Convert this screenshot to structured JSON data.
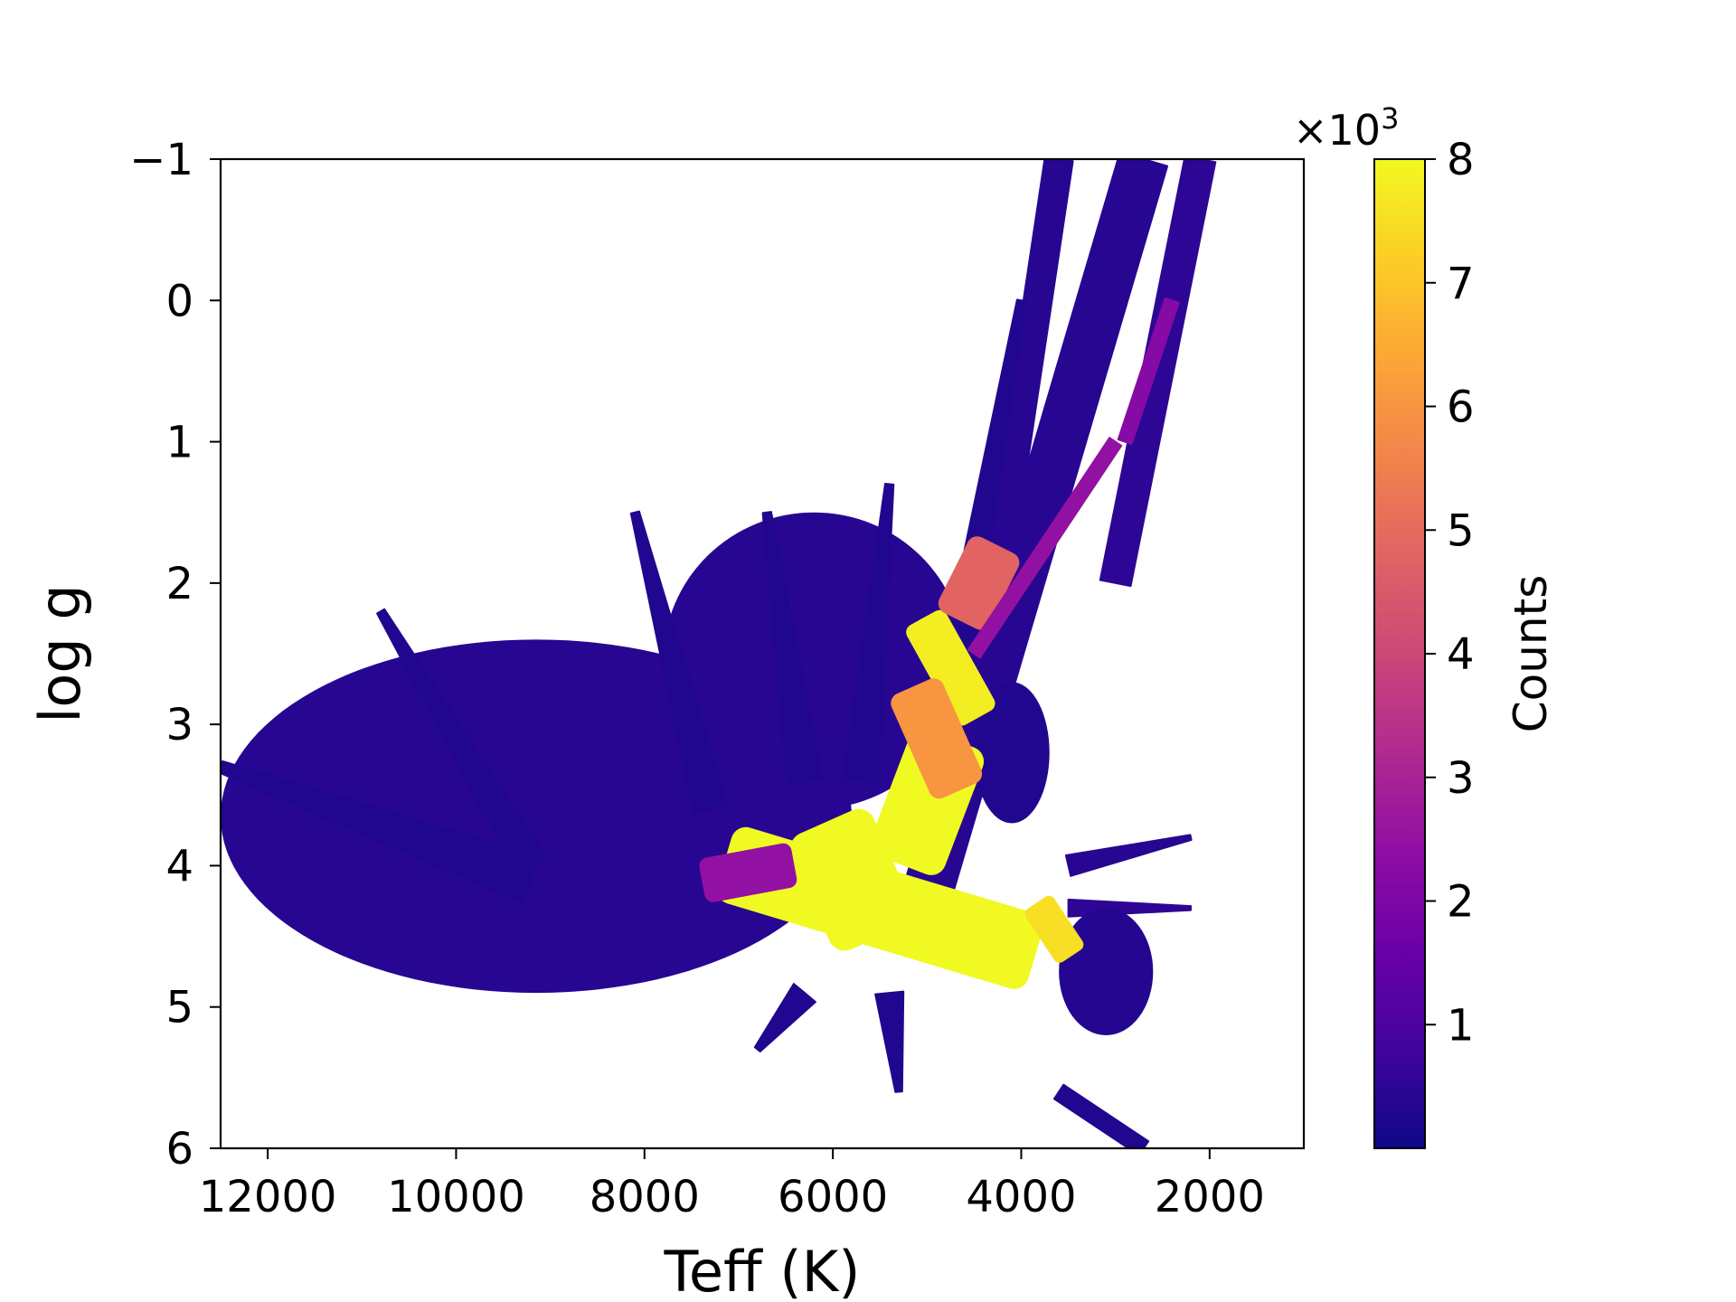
{
  "chart_data": {
    "type": "heatmap",
    "title": "",
    "xlabel": "Teff (K)",
    "ylabel": "log g",
    "xlim": [
      12500,
      1000
    ],
    "ylim": [
      6,
      -1
    ],
    "x_inverted": true,
    "y_inverted": true,
    "xticks": [
      12000,
      10000,
      8000,
      6000,
      4000,
      2000
    ],
    "yticks": [
      -1,
      0,
      1,
      2,
      3,
      4,
      5,
      6
    ],
    "xtick_labels": [
      "12000",
      "10000",
      "8000",
      "6000",
      "4000",
      "2000"
    ],
    "ytick_labels": [
      "−1",
      "0",
      "1",
      "2",
      "3",
      "4",
      "5",
      "6"
    ],
    "colormap": "plasma",
    "colorbar": {
      "label": "Counts",
      "range": [
        0,
        8
      ],
      "ticks": [
        1,
        2,
        3,
        4,
        5,
        6,
        7,
        8
      ],
      "tick_labels": [
        "1",
        "2",
        "3",
        "4",
        "5",
        "6",
        "7",
        "8"
      ],
      "multiplier": "×10",
      "multiplier_exponent": "3"
    },
    "grid": false,
    "density_features": [
      {
        "shape": "blob",
        "teff": [
          12500,
          5800
        ],
        "logg": [
          2.4,
          4.9
        ],
        "level": 0.4
      },
      {
        "shape": "blob",
        "teff": [
          7800,
          4600
        ],
        "logg": [
          1.5,
          3.6
        ],
        "level": 0.4
      },
      {
        "shape": "band",
        "from": [
          5000,
          4.2
        ],
        "to": [
          2700,
          -1.0
        ],
        "width": 0.35,
        "level": 0.4
      },
      {
        "shape": "band",
        "from": [
          3000,
          2.0
        ],
        "to": [
          2100,
          -1.0
        ],
        "width": 0.22,
        "level": 0.5
      },
      {
        "shape": "band",
        "from": [
          4500,
          3.0
        ],
        "to": [
          3600,
          -1.0
        ],
        "width": 0.2,
        "level": 0.4
      },
      {
        "shape": "spike",
        "from": [
          9200,
          4.0
        ],
        "to": [
          10800,
          2.2
        ],
        "width": 0.25,
        "level": 0.3
      },
      {
        "shape": "spike",
        "from": [
          9200,
          4.1
        ],
        "to": [
          12500,
          3.3
        ],
        "width": 0.35,
        "level": 0.3
      },
      {
        "shape": "spike",
        "from": [
          7300,
          3.6
        ],
        "to": [
          8100,
          1.5
        ],
        "width": 0.25,
        "level": 0.3
      },
      {
        "shape": "spike",
        "from": [
          6300,
          3.4
        ],
        "to": [
          6700,
          1.5
        ],
        "width": 0.25,
        "level": 0.3
      },
      {
        "shape": "spike",
        "from": [
          5700,
          3.4
        ],
        "to": [
          5400,
          1.3
        ],
        "width": 0.25,
        "level": 0.3
      },
      {
        "shape": "spike",
        "from": [
          4800,
          3.0
        ],
        "to": [
          4000,
          0.0
        ],
        "width": 0.25,
        "level": 0.3
      },
      {
        "shape": "spike",
        "from": [
          3500,
          4.0
        ],
        "to": [
          2200,
          3.8
        ],
        "width": 0.15,
        "level": 0.4
      },
      {
        "shape": "spike",
        "from": [
          3500,
          4.3
        ],
        "to": [
          2200,
          4.3
        ],
        "width": 0.12,
        "level": 0.5
      },
      {
        "shape": "spike",
        "from": [
          6300,
          4.9
        ],
        "to": [
          6800,
          5.3
        ],
        "width": 0.2,
        "level": 0.3
      },
      {
        "shape": "spike",
        "from": [
          5400,
          4.9
        ],
        "to": [
          5300,
          5.6
        ],
        "width": 0.2,
        "level": 0.3
      },
      {
        "shape": "blob",
        "teff": [
          3600,
          2600
        ],
        "logg": [
          4.3,
          5.2
        ],
        "level": 0.35
      },
      {
        "shape": "blob",
        "teff": [
          4500,
          3700
        ],
        "logg": [
          2.7,
          3.7
        ],
        "level": 0.3
      },
      {
        "shape": "band",
        "from": [
          3600,
          5.6
        ],
        "to": [
          2700,
          6.0
        ],
        "width": 0.12,
        "level": 0.3
      },
      {
        "shape": "hot",
        "from": [
          7000,
          4.0
        ],
        "to": [
          4000,
          4.6
        ],
        "width": 0.35,
        "level": 8.0
      },
      {
        "shape": "hot",
        "from": [
          6000,
          3.8
        ],
        "to": [
          5600,
          4.4
        ],
        "width": 0.4,
        "level": 8.0
      },
      {
        "shape": "hot",
        "from": [
          5200,
          3.9
        ],
        "to": [
          4800,
          3.2
        ],
        "width": 0.35,
        "level": 8.0
      },
      {
        "shape": "hot",
        "from": [
          5000,
          2.3
        ],
        "to": [
          4500,
          2.9
        ],
        "width": 0.2,
        "level": 7.8
      },
      {
        "shape": "hot",
        "from": [
          5100,
          2.8
        ],
        "to": [
          4700,
          3.4
        ],
        "width": 0.25,
        "level": 6.0
      },
      {
        "shape": "hot",
        "from": [
          4600,
          2.2
        ],
        "to": [
          4300,
          1.8
        ],
        "width": 0.25,
        "level": 4.8
      },
      {
        "shape": "hot",
        "from": [
          3800,
          4.3
        ],
        "to": [
          3500,
          4.6
        ],
        "width": 0.15,
        "level": 7.5
      },
      {
        "shape": "hot",
        "from": [
          7300,
          4.1
        ],
        "to": [
          6500,
          4.0
        ],
        "width": 0.2,
        "level": 2.5
      },
      {
        "shape": "line",
        "from": [
          4500,
          2.5
        ],
        "to": [
          3000,
          1.0
        ],
        "width": 0.1,
        "level": 2.5
      },
      {
        "shape": "line",
        "from": [
          2900,
          1.0
        ],
        "to": [
          2400,
          0.0
        ],
        "width": 0.1,
        "level": 2.2
      }
    ]
  }
}
